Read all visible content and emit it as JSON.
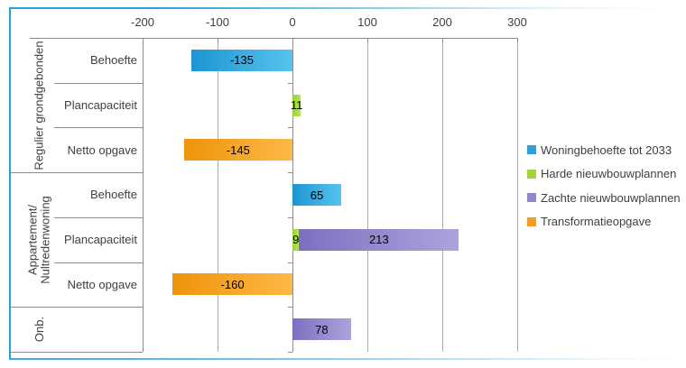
{
  "chart_data": {
    "type": "bar",
    "orientation": "horizontal",
    "stacked": true,
    "grid": true,
    "legend_position": "right",
    "axis": {
      "min": -200,
      "max": 300,
      "ticks": [
        -200,
        -100,
        0,
        100,
        200,
        300
      ]
    },
    "groups": [
      {
        "label": "Regulier grondgebonden",
        "lines": [
          "Regulier grondgebonden"
        ],
        "rows": [
          {
            "label": "Behoefte",
            "segments": [
              {
                "series": "Woningbehoefte tot 2033",
                "value": -135
              }
            ]
          },
          {
            "label": "Plancapaciteit",
            "segments": [
              {
                "series": "Harde nieuwbouwplannen",
                "value": 11
              }
            ]
          },
          {
            "label": "Netto opgave",
            "segments": [
              {
                "series": "Transformatieopgave",
                "value": -145
              }
            ]
          }
        ]
      },
      {
        "label": "Appartement/Nultredenwoning",
        "lines": [
          "Appartement/",
          "Nultredenwoning"
        ],
        "rows": [
          {
            "label": "Behoefte",
            "segments": [
              {
                "series": "Woningbehoefte tot 2033",
                "value": 65
              }
            ]
          },
          {
            "label": "Plancapaciteit",
            "segments": [
              {
                "series": "Harde nieuwbouwplannen",
                "value": 9
              },
              {
                "series": "Zachte nieuwbouwplannen",
                "value": 213
              }
            ]
          },
          {
            "label": "Netto opgave",
            "segments": [
              {
                "series": "Transformatieopgave",
                "value": -160
              }
            ]
          }
        ]
      },
      {
        "label": "Onb.",
        "lines": [
          "Onb."
        ],
        "rows": [
          {
            "label": "",
            "segments": [
              {
                "series": "Zachte nieuwbouwplannen",
                "value": 78
              }
            ]
          }
        ]
      }
    ],
    "legend": [
      {
        "label": "Woningbehoefte tot 2033",
        "color": "#2ba0d9",
        "gradient": [
          "#1e95d1",
          "#55c3ee"
        ]
      },
      {
        "label": "Harde nieuwbouwplannen",
        "color": "#a2d53c",
        "gradient": [
          "#9bd02f",
          "#b5e55e"
        ]
      },
      {
        "label": "Zachte nieuwbouwplannen",
        "color": "#9186cb",
        "gradient": [
          "#7d6fc0",
          "#aca3dc"
        ]
      },
      {
        "label": "Transformatieopgave",
        "color": "#f49d20",
        "gradient": [
          "#ef930b",
          "#fdb946"
        ]
      }
    ],
    "colors": {
      "gridline": "#acacac",
      "axis": "#8c8c8c",
      "border": "#28a0da",
      "label_text": "#3f3f3f",
      "value_text": "#000000"
    }
  }
}
